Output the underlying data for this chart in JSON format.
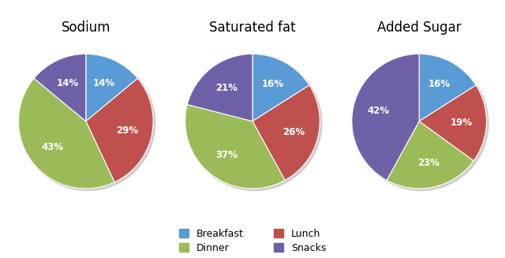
{
  "charts": [
    {
      "title": "Sodium",
      "values": [
        14,
        29,
        43,
        14
      ],
      "startangle": 90
    },
    {
      "title": "Saturated fat",
      "values": [
        16,
        26,
        37,
        21
      ],
      "startangle": 90
    },
    {
      "title": "Added Sugar",
      "values": [
        16,
        19,
        23,
        42
      ],
      "startangle": 90
    }
  ],
  "categories": [
    "Breakfast",
    "Lunch",
    "Dinner",
    "Snacks"
  ],
  "colors": [
    "#5B9BD5",
    "#C0504D",
    "#9BBB59",
    "#7060A8"
  ],
  "legend_labels": [
    "Breakfast",
    "Dinner",
    "Lunch",
    "Snacks"
  ],
  "legend_colors_order": [
    0,
    2,
    1,
    3
  ],
  "title_fontsize": 12,
  "label_fontsize": 8.5,
  "background_color": "#ffffff"
}
